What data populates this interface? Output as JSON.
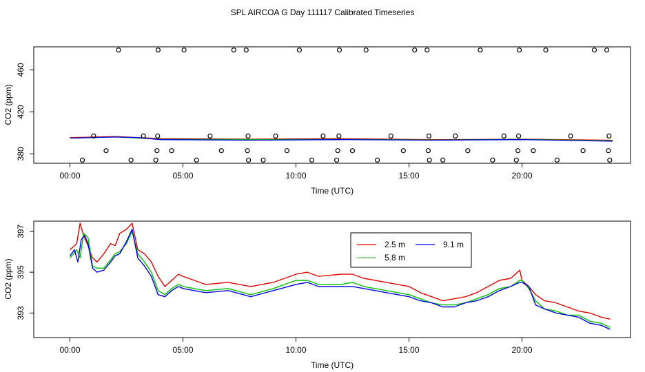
{
  "page_title": "SPL AIRCOA G  Day 111117  Calibrated Timeseries",
  "colors": {
    "red": "#e00000",
    "green": "#00c000",
    "blue": "#0000e0",
    "black": "#000000"
  },
  "chart_data": [
    {
      "type": "scatter+line",
      "xlabel": "Time (UTC)",
      "ylabel": "CO2 (ppm)",
      "xlim": [
        -1.6,
        24.8
      ],
      "ylim": [
        371,
        482
      ],
      "xticks": [
        0,
        5,
        10,
        15,
        20
      ],
      "xtick_labels": [
        "00:00",
        "05:00",
        "10:00",
        "15:00",
        "20:00"
      ],
      "yticks": [
        380,
        420,
        460
      ],
      "ytick_labels": [
        "380",
        "420",
        "460"
      ],
      "lines": [
        {
          "name": "2.5 m",
          "color": "red",
          "x": [
            0,
            2,
            4,
            8,
            12,
            16,
            20,
            24
          ],
          "y": [
            395.5,
            396.5,
            394.5,
            394.0,
            394.5,
            393.5,
            394.0,
            393.0
          ]
        },
        {
          "name": "5.8 m",
          "color": "green",
          "x": [
            0,
            2,
            4,
            8,
            12,
            16,
            20,
            24
          ],
          "y": [
            395.0,
            396.0,
            394.0,
            393.5,
            393.8,
            393.2,
            393.8,
            392.5
          ]
        },
        {
          "name": "9.1 m",
          "color": "blue",
          "x": [
            0,
            2,
            3,
            4,
            8,
            12,
            16,
            20,
            24
          ],
          "y": [
            395.0,
            396.0,
            395.5,
            393.5,
            393.0,
            393.5,
            393.0,
            393.5,
            392.0
          ]
        }
      ],
      "points": {
        "x": [
          0.55,
          1.05,
          1.6,
          2.15,
          2.7,
          3.25,
          3.8,
          3.85,
          3.88,
          3.9,
          4.5,
          5.05,
          5.6,
          6.2,
          6.7,
          7.25,
          7.8,
          7.85,
          7.88,
          7.9,
          8.55,
          9.1,
          9.6,
          10.15,
          10.7,
          11.2,
          11.8,
          11.85,
          11.9,
          11.92,
          12.5,
          13.1,
          13.6,
          14.2,
          14.75,
          15.25,
          15.8,
          15.85,
          15.88,
          15.9,
          16.5,
          17.05,
          17.6,
          18.15,
          18.7,
          19.2,
          19.75,
          19.82,
          19.85,
          19.88,
          20.5,
          21.05,
          21.55,
          22.15,
          22.7,
          23.2,
          23.75,
          23.82,
          23.85,
          23.88
        ],
        "y": [
          374,
          397,
          383,
          479,
          374,
          397,
          374,
          383,
          397,
          479,
          383,
          479,
          374,
          397,
          383,
          479,
          479,
          383,
          397,
          374,
          374,
          397,
          383,
          479,
          374,
          397,
          374,
          383,
          397,
          479,
          383,
          479,
          374,
          397,
          383,
          479,
          479,
          383,
          397,
          374,
          374,
          397,
          383,
          479,
          374,
          397,
          374,
          383,
          397,
          479,
          383,
          479,
          374,
          397,
          383,
          479,
          479,
          383,
          397,
          374
        ]
      }
    },
    {
      "type": "line",
      "xlabel": "Time (UTC)",
      "ylabel": "CO2 (ppm)",
      "xlim": [
        -1.6,
        24.8
      ],
      "ylim": [
        391.8,
        397.5
      ],
      "xticks": [
        0,
        5,
        10,
        15,
        20
      ],
      "xtick_labels": [
        "00:00",
        "05:00",
        "10:00",
        "15:00",
        "20:00"
      ],
      "yticks": [
        393,
        395,
        397
      ],
      "ytick_labels": [
        "393",
        "395",
        "397"
      ],
      "legend": {
        "position": "top-center",
        "entries": [
          {
            "label": "2.5 m",
            "color": "red"
          },
          {
            "label": "5.8 m",
            "color": "green"
          },
          {
            "label": "9.1 m",
            "color": "blue"
          }
        ]
      },
      "series": [
        {
          "name": "2.5 m",
          "color": "red",
          "x": [
            0,
            0.3,
            0.45,
            0.6,
            0.8,
            1.0,
            1.2,
            1.5,
            1.8,
            2.0,
            2.2,
            2.5,
            2.75,
            3.0,
            3.3,
            3.6,
            3.9,
            4.2,
            4.5,
            4.8,
            5.0,
            5.5,
            6.0,
            7.0,
            8.0,
            9.0,
            10.0,
            10.5,
            11.0,
            12.0,
            12.5,
            13.0,
            14.0,
            15.0,
            15.5,
            16.0,
            16.5,
            17.0,
            17.5,
            18.0,
            18.5,
            19.0,
            19.5,
            19.9,
            20.0,
            20.3,
            20.6,
            21.0,
            21.5,
            22.0,
            22.5,
            23.0,
            23.5,
            23.9
          ],
          "y": [
            396.1,
            396.4,
            397.4,
            396.8,
            396.3,
            395.7,
            395.5,
            395.9,
            396.4,
            396.3,
            396.9,
            397.1,
            397.4,
            396.1,
            395.9,
            395.5,
            394.8,
            394.3,
            394.6,
            394.9,
            394.8,
            394.6,
            394.4,
            394.5,
            394.3,
            394.5,
            394.9,
            395.0,
            394.8,
            394.9,
            394.9,
            394.7,
            394.5,
            394.3,
            394.0,
            393.8,
            393.6,
            393.7,
            393.8,
            394.0,
            394.3,
            394.6,
            394.7,
            395.1,
            394.6,
            394.3,
            393.9,
            393.6,
            393.5,
            393.3,
            393.1,
            393.0,
            392.8,
            392.7
          ]
        },
        {
          "name": "5.8 m",
          "color": "green",
          "x": [
            0,
            0.3,
            0.45,
            0.6,
            0.8,
            1.0,
            1.2,
            1.5,
            1.8,
            2.0,
            2.2,
            2.5,
            2.75,
            3.0,
            3.3,
            3.6,
            3.9,
            4.2,
            4.5,
            4.8,
            5.0,
            5.5,
            6.0,
            7.0,
            8.0,
            9.0,
            10.0,
            10.5,
            11.0,
            12.0,
            12.5,
            13.0,
            14.0,
            15.0,
            15.5,
            16.0,
            16.5,
            17.0,
            17.5,
            18.0,
            18.5,
            19.0,
            19.5,
            19.9,
            20.0,
            20.3,
            20.6,
            21.0,
            21.5,
            22.0,
            22.5,
            23.0,
            23.5,
            23.9
          ],
          "y": [
            395.7,
            396.1,
            395.7,
            396.9,
            396.7,
            395.3,
            395.2,
            395.2,
            395.6,
            395.9,
            396.0,
            396.4,
            397.0,
            395.9,
            395.5,
            395.0,
            394.1,
            393.9,
            394.2,
            394.4,
            394.3,
            394.2,
            394.1,
            394.2,
            393.9,
            394.2,
            394.6,
            394.6,
            394.4,
            394.4,
            394.5,
            394.3,
            394.1,
            393.9,
            393.7,
            393.5,
            393.4,
            393.4,
            393.5,
            393.7,
            393.9,
            394.2,
            394.3,
            394.6,
            394.6,
            394.2,
            393.6,
            393.2,
            393.1,
            392.9,
            392.9,
            392.6,
            392.5,
            392.3
          ]
        },
        {
          "name": "9.1 m",
          "color": "blue",
          "x": [
            0,
            0.2,
            0.35,
            0.5,
            0.65,
            0.8,
            1.0,
            1.2,
            1.5,
            1.8,
            2.0,
            2.2,
            2.5,
            2.75,
            3.0,
            3.3,
            3.6,
            3.9,
            4.2,
            4.5,
            4.8,
            5.0,
            5.5,
            6.0,
            7.0,
            8.0,
            9.0,
            10.0,
            10.5,
            11.0,
            12.0,
            12.5,
            13.0,
            14.0,
            15.0,
            15.5,
            16.0,
            16.5,
            17.0,
            17.5,
            18.0,
            18.5,
            19.0,
            19.5,
            19.9,
            20.0,
            20.3,
            20.6,
            21.0,
            21.5,
            22.0,
            22.5,
            23.0,
            23.5,
            23.9
          ],
          "y": [
            395.8,
            396.1,
            395.5,
            396.6,
            396.8,
            396.4,
            395.2,
            395.0,
            395.1,
            395.5,
            395.8,
            395.9,
            396.5,
            397.1,
            395.7,
            395.3,
            394.8,
            393.9,
            393.8,
            394.1,
            394.3,
            394.2,
            394.1,
            394.0,
            394.1,
            393.8,
            394.1,
            394.4,
            394.5,
            394.3,
            394.3,
            394.3,
            394.2,
            394.0,
            393.8,
            393.6,
            393.5,
            393.3,
            393.3,
            393.5,
            393.6,
            393.8,
            394.1,
            394.3,
            394.5,
            394.5,
            394.3,
            393.4,
            393.2,
            393.0,
            392.9,
            392.8,
            392.5,
            392.4,
            392.2
          ]
        }
      ]
    }
  ]
}
